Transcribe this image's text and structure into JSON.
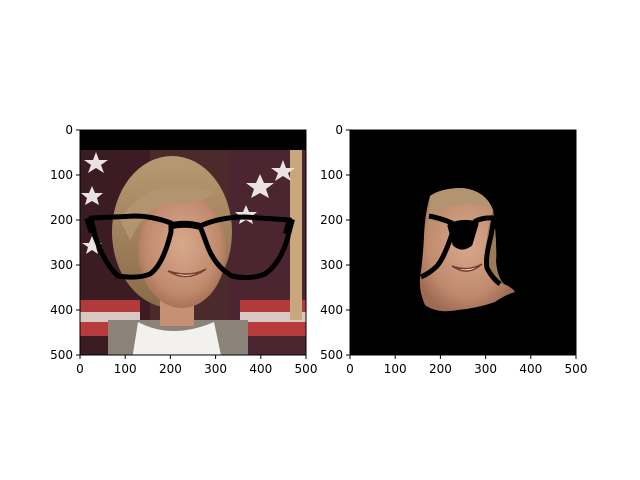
{
  "figure": {
    "background": "#ffffff",
    "panel_count": 2
  },
  "chart_data": [
    {
      "type": "image",
      "title": "",
      "xlabel": "",
      "ylabel": "",
      "xlim": [
        0,
        500
      ],
      "ylim": [
        500,
        0
      ],
      "xticks": [
        0,
        100,
        200,
        300,
        400,
        500
      ],
      "yticks": [
        0,
        100,
        200,
        300,
        400,
        500
      ],
      "grid": false,
      "content": "photo of a smiling woman with short light-brown hair, white turtleneck and tweed jacket, US-flag background with white stars, large black eyeglasses overlay; top band (y 0 to 45) is black",
      "glasses_overlay": {
        "x": [
          25,
          470
        ],
        "y": [
          195,
          280
        ]
      }
    },
    {
      "type": "image",
      "title": "",
      "xlabel": "",
      "ylabel": "",
      "xlim": [
        0,
        500
      ],
      "ylim": [
        500,
        0
      ],
      "xticks": [
        0,
        100,
        200,
        300,
        400,
        500
      ],
      "yticks": [
        0,
        100,
        200,
        300,
        400,
        500
      ],
      "grid": false,
      "content": "segmented face mask: only the face region remains, rest of image black; black eyeglasses overlay across the eyes",
      "mask_extent": {
        "x": [
          150,
          365
        ],
        "y": [
          130,
          400
        ]
      }
    }
  ]
}
